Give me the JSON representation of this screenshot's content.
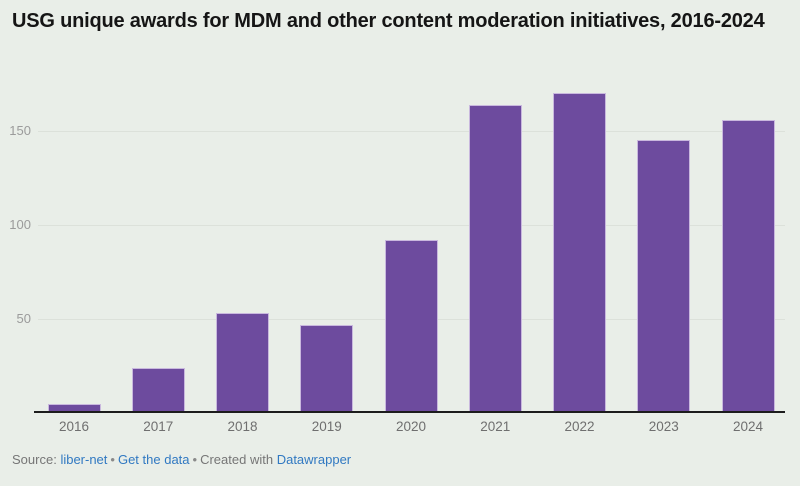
{
  "title": "USG unique awards for MDM and other content moderation initiatives, 2016-2024",
  "footer": {
    "source_label": "Source:",
    "source_link": "liber-net",
    "separator": "•",
    "get_data_link": "Get the data",
    "created_with_label": "Created with",
    "tool_link": "Datawrapper"
  },
  "colors": {
    "background": "#e9eee8",
    "bar_fill": "#6d4b9e",
    "bar_border": "#c9b8de",
    "axis_line": "#1c1c1c",
    "gridline": "#dce1da",
    "y_tick_label": "#9b9b9b",
    "x_tick_label": "#6f6f6f",
    "link": "#3179c2",
    "footer_text": "#767676",
    "title_text": "#151515"
  },
  "chart_data": {
    "type": "bar",
    "title": "USG unique awards for MDM and other content moderation initiatives, 2016-2024",
    "categories": [
      "2016",
      "2017",
      "2018",
      "2019",
      "2020",
      "2021",
      "2022",
      "2023",
      "2024"
    ],
    "values": [
      5,
      24,
      53,
      47,
      92,
      164,
      170,
      145,
      156
    ],
    "xlabel": "",
    "ylabel": "",
    "y_ticks": [
      50,
      100,
      150
    ],
    "ylim": [
      0,
      175
    ],
    "grid": true,
    "legend": false,
    "legend_position": "none",
    "bar_color": "#6d4b9e"
  }
}
